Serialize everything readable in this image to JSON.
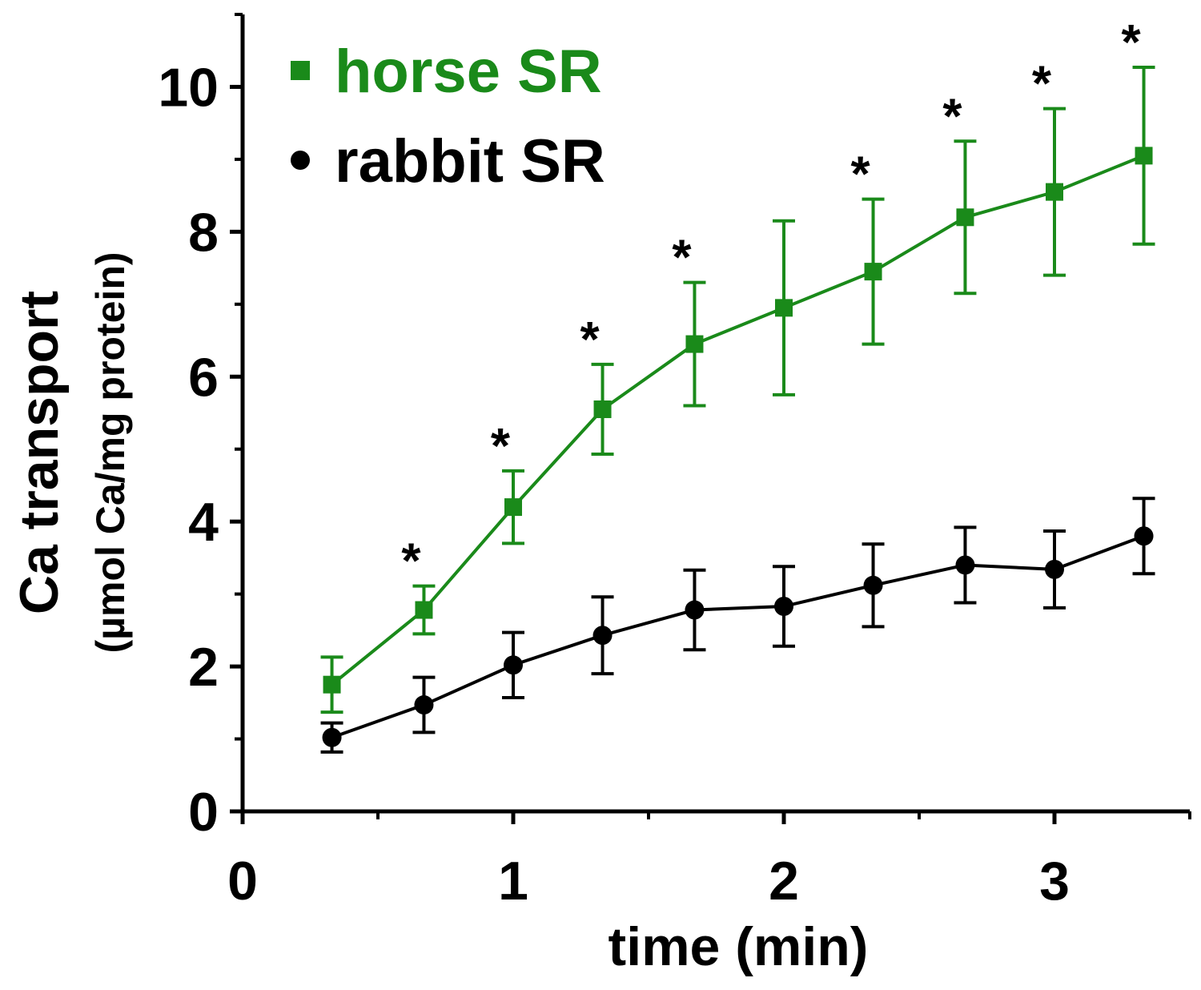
{
  "chart_data": {
    "type": "line",
    "title": "",
    "xlabel": "time (min)",
    "ylabel": "Ca transport",
    "ylabel_units": "(µmol Ca/mg protein)",
    "xlim": [
      0,
      3.5
    ],
    "ylim": [
      0,
      11
    ],
    "x_ticks": [
      0,
      1,
      2,
      3
    ],
    "x_tick_labels": [
      "0",
      "1",
      "2",
      "3"
    ],
    "x_minor_ticks": [
      0.5,
      1.5,
      2.5,
      3.5
    ],
    "y_ticks": [
      0,
      2,
      4,
      6,
      8,
      10
    ],
    "y_tick_labels": [
      "0",
      "2",
      "4",
      "6",
      "8",
      "10"
    ],
    "y_minor_ticks": [
      1,
      3,
      5,
      7,
      9,
      11
    ],
    "grid": false,
    "legend_position": "top-left",
    "significance_marker": "*",
    "series": [
      {
        "name": "horse SR",
        "color": "#1a8a1a",
        "marker": "square",
        "x": [
          0.33,
          0.67,
          1.0,
          1.33,
          1.67,
          2.0,
          2.33,
          2.67,
          3.0,
          3.33
        ],
        "values": [
          1.75,
          2.78,
          4.2,
          5.55,
          6.45,
          6.95,
          7.45,
          8.2,
          8.55,
          9.05
        ],
        "error": [
          0.38,
          0.33,
          0.5,
          0.62,
          0.85,
          1.2,
          1.0,
          1.05,
          1.15,
          1.22
        ],
        "significant": [
          false,
          true,
          true,
          true,
          true,
          false,
          true,
          true,
          true,
          true
        ]
      },
      {
        "name": "rabbit SR",
        "color": "#000000",
        "marker": "circle",
        "x": [
          0.33,
          0.67,
          1.0,
          1.33,
          1.67,
          2.0,
          2.33,
          2.67,
          3.0,
          3.33
        ],
        "values": [
          1.02,
          1.47,
          2.02,
          2.43,
          2.78,
          2.83,
          3.12,
          3.4,
          3.34,
          3.8
        ],
        "error": [
          0.2,
          0.38,
          0.45,
          0.53,
          0.55,
          0.55,
          0.57,
          0.52,
          0.53,
          0.52
        ],
        "significant": [
          false,
          false,
          false,
          false,
          false,
          false,
          false,
          false,
          false,
          false
        ]
      }
    ]
  }
}
